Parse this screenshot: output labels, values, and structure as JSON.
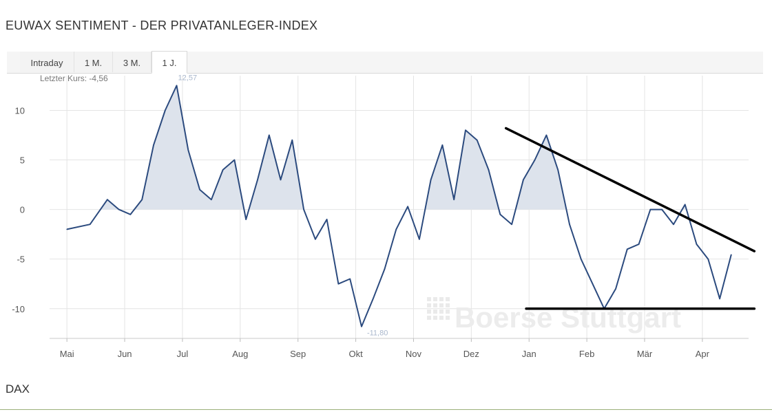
{
  "page": {
    "title": "EUWAX SENTIMENT - DER PRIVATANLEGER-INDEX",
    "footer_label": "DAX"
  },
  "tabs": [
    {
      "label": "Intraday",
      "active": false
    },
    {
      "label": "1 M.",
      "active": false
    },
    {
      "label": "3 M.",
      "active": false
    },
    {
      "label": "1 J.",
      "active": true
    }
  ],
  "watermark": "Boerse Stuttgart",
  "chart_data": {
    "type": "area",
    "last_price_label": "Letzter Kurs: -4,56",
    "max_label": "12,57",
    "min_label": "-11,80",
    "months": [
      "Mai",
      "Jun",
      "Jul",
      "Aug",
      "Sep",
      "Okt",
      "Nov",
      "Dez",
      "Jan",
      "Feb",
      "Mär",
      "Apr"
    ],
    "yticks": [
      10,
      5,
      0,
      -5,
      -10
    ],
    "ylim": [
      -13,
      13.5
    ],
    "grid": true,
    "series": [
      {
        "color": "#2b4a7e",
        "fill": "#dde3ec",
        "x": [
          0,
          0.4,
          0.7,
          0.9,
          1.1,
          1.3,
          1.5,
          1.7,
          1.9,
          2.1,
          2.3,
          2.5,
          2.7,
          2.9,
          3.1,
          3.3,
          3.5,
          3.7,
          3.9,
          4.1,
          4.3,
          4.5,
          4.7,
          4.9,
          5.1,
          5.3,
          5.5,
          5.7,
          5.9,
          6.1,
          6.3,
          6.5,
          6.7,
          6.9,
          7.1,
          7.3,
          7.5,
          7.7,
          7.9,
          8.1,
          8.3,
          8.5,
          8.7,
          8.9,
          9.1,
          9.3,
          9.5,
          9.7,
          9.9,
          10.1,
          10.3,
          10.5,
          10.7,
          10.9,
          11.1,
          11.3,
          11.5
        ],
        "y": [
          -2,
          -1.5,
          1,
          0,
          -0.5,
          1,
          6.5,
          10,
          12.5,
          6,
          2,
          1,
          4,
          5,
          -1,
          3,
          7.5,
          3,
          7,
          0,
          -3,
          -1,
          -7.5,
          -7,
          -11.8,
          -9,
          -6,
          -2,
          0.3,
          -3,
          3,
          6.5,
          1,
          8,
          7,
          4,
          -0.5,
          -1.5,
          3,
          5,
          7.5,
          4,
          -1.5,
          -5,
          -7.5,
          -10,
          -8,
          -4,
          -3.5,
          0,
          0,
          -1.5,
          0.5,
          -3.5,
          -5,
          -9,
          -4.56
        ]
      }
    ]
  }
}
